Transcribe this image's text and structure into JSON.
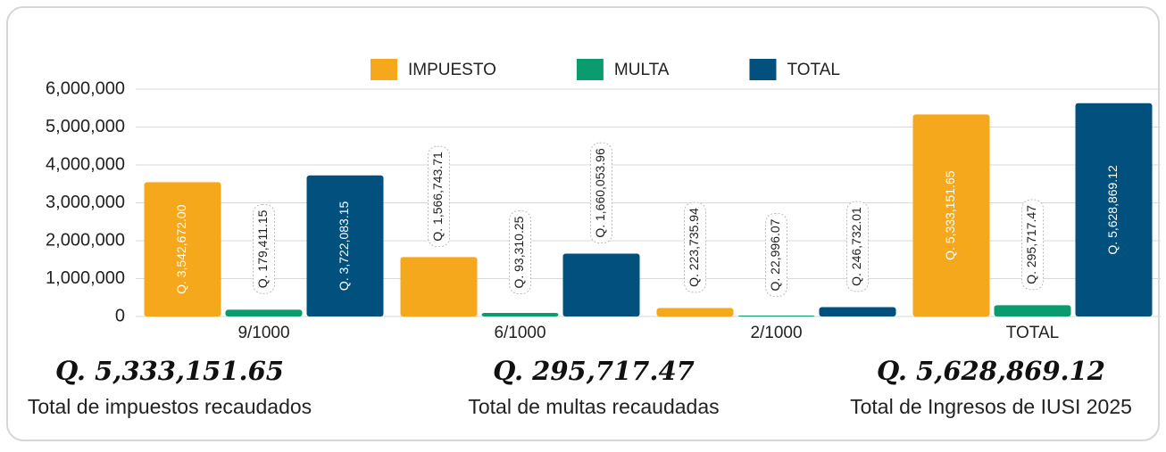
{
  "chart_data": {
    "type": "bar",
    "categories": [
      "9/1000",
      "6/1000",
      "2/1000",
      "TOTAL"
    ],
    "series": [
      {
        "name": "IMPUESTO",
        "color": "#f5a81c",
        "values": [
          3542672.0,
          1566743.71,
          223735.94,
          5333151.65
        ],
        "value_labels": [
          "Q. 3,542,672.00",
          "Q. 1,566,743.71",
          "Q. 223,735.94",
          "Q. 5,333,151.65"
        ]
      },
      {
        "name": "MULTA",
        "color": "#0a9b6f",
        "values": [
          179411.15,
          93310.25,
          22996.07,
          295717.47
        ],
        "value_labels": [
          "Q. 179,411.15",
          "Q. 93,310.25",
          "Q. 22,996.07",
          "Q. 295,717.47"
        ]
      },
      {
        "name": "TOTAL",
        "color": "#01507e",
        "values": [
          3722083.15,
          1660053.96,
          246732.01,
          5628869.12
        ],
        "value_labels": [
          "Q. 3,722,083.15",
          "Q. 1,660,053.96",
          "Q. 246,732.01",
          "Q. 5,628,869.12"
        ]
      }
    ],
    "ylim": [
      0,
      6000000
    ],
    "yticks": [
      0,
      {
        "value": 1000000,
        "label": "1,000,000"
      },
      {
        "value": 2000000,
        "label": "2,000,000"
      },
      {
        "value": 3000000,
        "label": "3,000,000"
      },
      {
        "value": 4000000,
        "label": "4,000,000"
      },
      {
        "value": 5000000,
        "label": "5,000,000"
      },
      {
        "value": 6000000,
        "label": "6,000,000"
      }
    ],
    "grid": true,
    "legend": "top"
  },
  "summary": [
    {
      "value": "Q. 5,333,151.65",
      "caption": "Total de impuestos recaudados"
    },
    {
      "value": "Q. 295,717.47",
      "caption": "Total de multas recaudadas"
    },
    {
      "value": "Q. 5,628,869.12",
      "caption": "Total de Ingresos de IUSI 2025"
    }
  ]
}
